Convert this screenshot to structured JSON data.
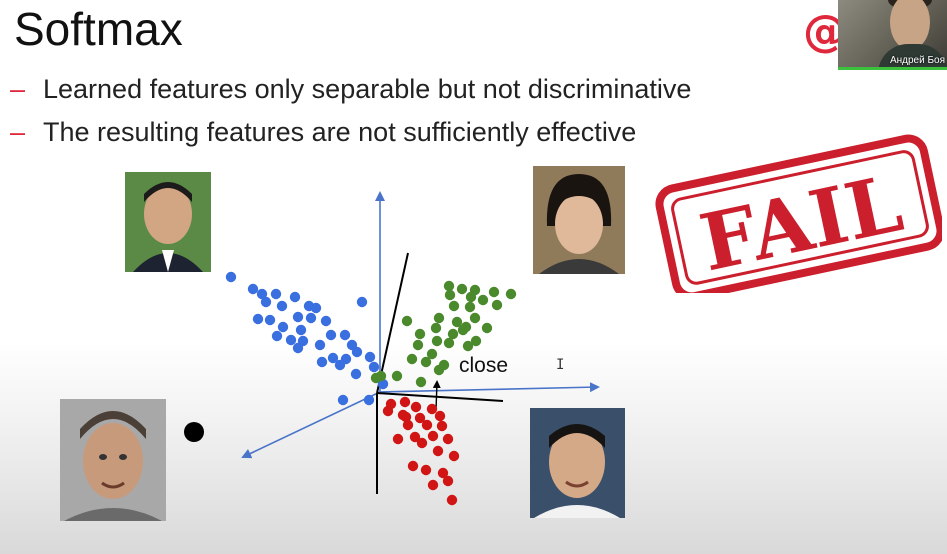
{
  "slide": {
    "title": "Softmax",
    "bullets": [
      "Learned features only separable but not discriminative",
      "The resulting features are not sufficiently effective"
    ],
    "logo": "@",
    "stamp_text": "FAIL",
    "annotation": "close",
    "accent_color": "#e0283c",
    "stamp_color": "#cc1f2d"
  },
  "webcam": {
    "name": "Андрей Боя"
  },
  "cursor_icon": "text-cursor-icon",
  "scatter_colors": {
    "blue": "#3a6fe0",
    "green": "#4a8a2c",
    "red": "#d11515",
    "black": "#000000"
  }
}
